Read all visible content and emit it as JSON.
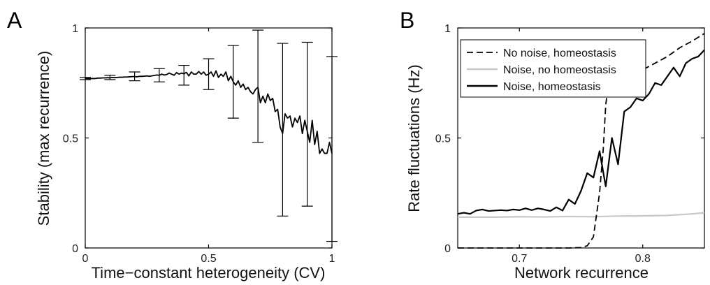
{
  "chart_data": [
    {
      "panel": "A",
      "type": "line",
      "xlabel": "Time−constant heterogeneity (CV)",
      "ylabel": "Stability (max recurrence)",
      "xlim": [
        0,
        1
      ],
      "ylim": [
        0,
        1
      ],
      "xticks": [
        {
          "v": 0,
          "label": "0"
        },
        {
          "v": 0.5,
          "label": "0.5"
        },
        {
          "v": 1,
          "label": "1"
        }
      ],
      "yticks": [
        {
          "v": 0,
          "label": "0"
        },
        {
          "v": 0.5,
          "label": "0.5"
        },
        {
          "v": 1,
          "label": "1"
        }
      ],
      "series": [
        {
          "style": "solid",
          "color": "#000000",
          "x": [
            0,
            0.01,
            0.02,
            0.03,
            0.04,
            0.05,
            0.06,
            0.07,
            0.08,
            0.09,
            0.1,
            0.11,
            0.12,
            0.13,
            0.14,
            0.15,
            0.16,
            0.17,
            0.18,
            0.19,
            0.2,
            0.21,
            0.22,
            0.23,
            0.24,
            0.25,
            0.26,
            0.27,
            0.28,
            0.29,
            0.3,
            0.31,
            0.32,
            0.33,
            0.34,
            0.35,
            0.36,
            0.37,
            0.38,
            0.39,
            0.4,
            0.41,
            0.42,
            0.43,
            0.44,
            0.45,
            0.46,
            0.47,
            0.48,
            0.49,
            0.5,
            0.51,
            0.52,
            0.53,
            0.54,
            0.55,
            0.56,
            0.57,
            0.58,
            0.59,
            0.6,
            0.61,
            0.62,
            0.63,
            0.64,
            0.65,
            0.66,
            0.67,
            0.68,
            0.69,
            0.7,
            0.71,
            0.72,
            0.73,
            0.74,
            0.75,
            0.76,
            0.77,
            0.78,
            0.79,
            0.8,
            0.81,
            0.82,
            0.83,
            0.84,
            0.85,
            0.86,
            0.87,
            0.88,
            0.89,
            0.9,
            0.91,
            0.92,
            0.93,
            0.94,
            0.95,
            0.96,
            0.97,
            0.98,
            0.99,
            1.0
          ],
          "y": [
            0.77,
            0.77,
            0.77,
            0.77,
            0.77,
            0.772,
            0.772,
            0.773,
            0.773,
            0.774,
            0.773,
            0.775,
            0.774,
            0.775,
            0.776,
            0.776,
            0.777,
            0.777,
            0.778,
            0.779,
            0.779,
            0.778,
            0.78,
            0.78,
            0.781,
            0.782,
            0.78,
            0.782,
            0.784,
            0.786,
            0.785,
            0.79,
            0.786,
            0.788,
            0.795,
            0.79,
            0.785,
            0.797,
            0.79,
            0.795,
            0.792,
            0.798,
            0.782,
            0.8,
            0.79,
            0.79,
            0.802,
            0.79,
            0.8,
            0.785,
            0.79,
            0.8,
            0.78,
            0.805,
            0.775,
            0.79,
            0.78,
            0.8,
            0.76,
            0.78,
            0.755,
            0.74,
            0.76,
            0.73,
            0.745,
            0.72,
            0.73,
            0.71,
            0.7,
            0.72,
            0.73,
            0.66,
            0.69,
            0.66,
            0.7,
            0.67,
            0.68,
            0.62,
            0.63,
            0.55,
            0.52,
            0.61,
            0.59,
            0.6,
            0.55,
            0.59,
            0.57,
            0.6,
            0.52,
            0.58,
            0.53,
            0.48,
            0.58,
            0.47,
            0.53,
            0.43,
            0.45,
            0.43,
            0.43,
            0.48,
            0.43
          ]
        }
      ],
      "errorbars": [
        {
          "x": 0.0,
          "lo": 0.765,
          "hi": 0.775
        },
        {
          "x": 0.1,
          "lo": 0.765,
          "hi": 0.785
        },
        {
          "x": 0.2,
          "lo": 0.76,
          "hi": 0.8
        },
        {
          "x": 0.3,
          "lo": 0.755,
          "hi": 0.815
        },
        {
          "x": 0.4,
          "lo": 0.74,
          "hi": 0.83
        },
        {
          "x": 0.5,
          "lo": 0.72,
          "hi": 0.86
        },
        {
          "x": 0.6,
          "lo": 0.59,
          "hi": 0.92
        },
        {
          "x": 0.7,
          "lo": 0.48,
          "hi": 0.99
        },
        {
          "x": 0.8,
          "lo": 0.145,
          "hi": 0.93
        },
        {
          "x": 0.9,
          "lo": 0.19,
          "hi": 0.935
        },
        {
          "x": 1.0,
          "lo": 0.03,
          "hi": 0.87
        }
      ]
    },
    {
      "panel": "B",
      "type": "line",
      "xlabel": "Network recurrence",
      "ylabel": "Rate fluctuations (Hz)",
      "xlim": [
        0.65,
        0.85
      ],
      "ylim": [
        0,
        1
      ],
      "xticks": [
        {
          "v": 0.7,
          "label": "0.7"
        },
        {
          "v": 0.8,
          "label": "0.8"
        }
      ],
      "yticks": [
        {
          "v": 0,
          "label": "0"
        },
        {
          "v": 0.5,
          "label": "0.5"
        },
        {
          "v": 1,
          "label": "1"
        }
      ],
      "legend_position": "top-right",
      "series": [
        {
          "name": "No noise, homeostasis",
          "style": "dashed",
          "color": "#000000",
          "x": [
            0.65,
            0.7,
            0.74,
            0.75,
            0.755,
            0.76,
            0.765,
            0.768,
            0.77,
            0.772,
            0.775,
            0.78,
            0.79,
            0.8,
            0.81,
            0.82,
            0.83,
            0.84,
            0.85
          ],
          "y": [
            0,
            0,
            0,
            0.002,
            0.01,
            0.05,
            0.25,
            0.45,
            0.65,
            0.74,
            0.76,
            0.775,
            0.79,
            0.81,
            0.84,
            0.87,
            0.91,
            0.94,
            0.975
          ]
        },
        {
          "name": "Noise, no homeostasis",
          "style": "solid",
          "color": "#c8c8c8",
          "x": [
            0.65,
            0.68,
            0.7,
            0.72,
            0.74,
            0.76,
            0.78,
            0.8,
            0.82,
            0.84,
            0.85
          ],
          "y": [
            0.14,
            0.14,
            0.142,
            0.141,
            0.143,
            0.142,
            0.145,
            0.146,
            0.148,
            0.155,
            0.16
          ]
        },
        {
          "name": "Noise, homeostasis",
          "style": "solid",
          "color": "#000000",
          "x": [
            0.65,
            0.655,
            0.66,
            0.665,
            0.67,
            0.675,
            0.68,
            0.685,
            0.69,
            0.695,
            0.7,
            0.705,
            0.71,
            0.715,
            0.72,
            0.725,
            0.73,
            0.735,
            0.74,
            0.745,
            0.75,
            0.755,
            0.76,
            0.765,
            0.77,
            0.775,
            0.78,
            0.785,
            0.79,
            0.795,
            0.8,
            0.805,
            0.81,
            0.815,
            0.82,
            0.825,
            0.83,
            0.835,
            0.84,
            0.845,
            0.85
          ],
          "y": [
            0.155,
            0.16,
            0.155,
            0.17,
            0.175,
            0.168,
            0.17,
            0.172,
            0.17,
            0.175,
            0.172,
            0.18,
            0.172,
            0.18,
            0.175,
            0.168,
            0.185,
            0.17,
            0.22,
            0.2,
            0.26,
            0.34,
            0.32,
            0.44,
            0.28,
            0.5,
            0.38,
            0.62,
            0.64,
            0.68,
            0.67,
            0.7,
            0.75,
            0.74,
            0.78,
            0.82,
            0.78,
            0.84,
            0.86,
            0.87,
            0.9
          ]
        }
      ]
    }
  ],
  "panel_labels": {
    "a": "A",
    "b": "B"
  }
}
